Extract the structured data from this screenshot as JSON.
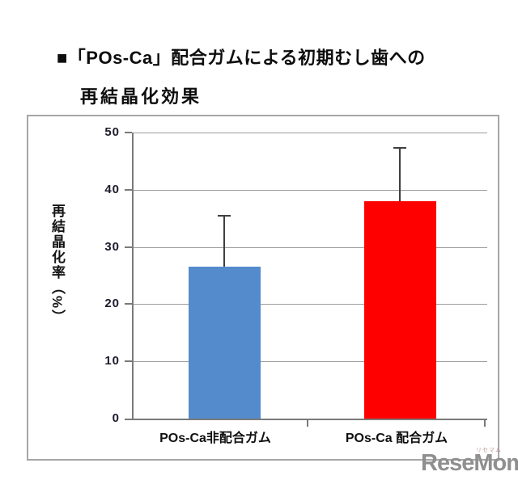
{
  "title": {
    "line1": "■「POs-Ca」配合ガムによる初期むし歯への",
    "line2": "再結晶化効果"
  },
  "watermark": {
    "logo_text": "ReseMom.",
    "logo_ruby": "リセマム",
    "color": "#8f8f8f"
  },
  "chart_data": {
    "type": "bar",
    "categories": [
      "POs-Ca非配合ガム",
      "POs-Ca 配合ガム"
    ],
    "values": [
      26.5,
      38
    ],
    "error_plus": [
      9,
      9.3
    ],
    "series_colors": [
      "#548bcd",
      "#fe0000"
    ],
    "title": "「POs-Ca」配合ガムによる初期むし歯への再結晶化効果",
    "xlabel": "",
    "ylabel": "再結晶化率（%）",
    "ylim": [
      0,
      50
    ],
    "yticks": [
      0,
      10,
      20,
      30,
      40,
      50
    ],
    "grid": "horizontal",
    "legend": "none",
    "error_bar_color": "#3f3f3f",
    "grid_color": "#9d9d9d",
    "axis_color": "#7a7a7a",
    "frame_border_color": "#a6a6a6"
  }
}
